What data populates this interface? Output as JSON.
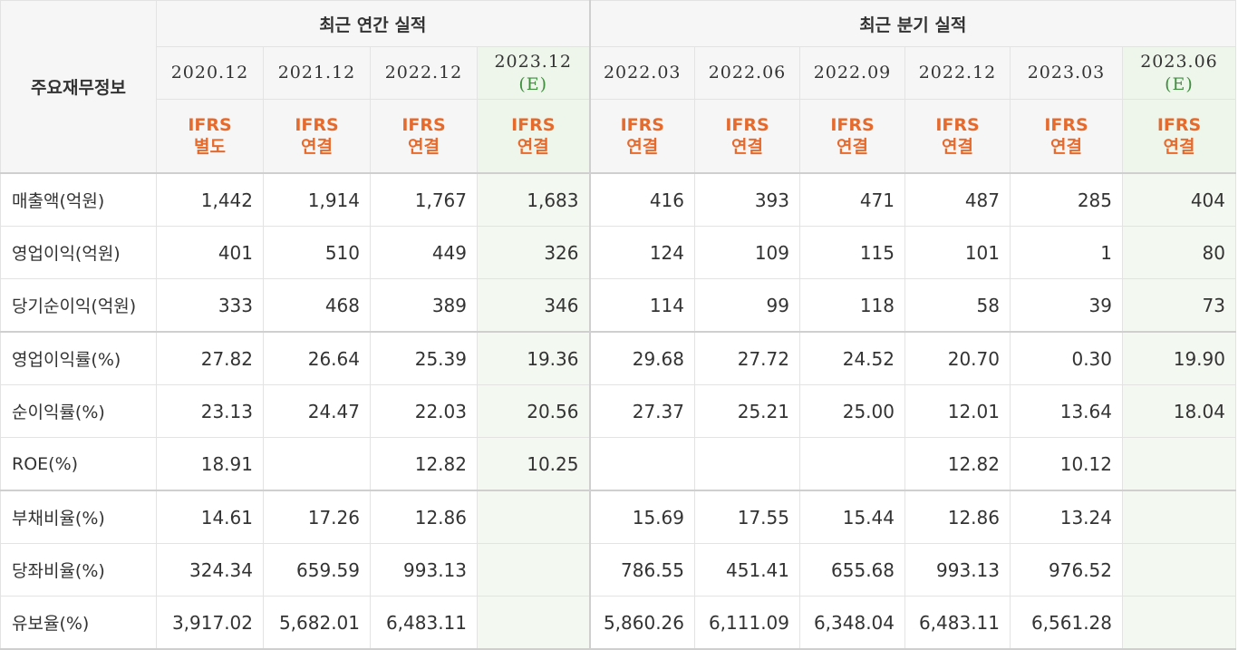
{
  "header": {
    "row_label": "주요재무정보",
    "annual_group": "최근 연간 실적",
    "quarter_group": "최근 분기 실적"
  },
  "columns": [
    {
      "period": "2020.12",
      "estimate": "",
      "std1": "IFRS",
      "std2": "별도"
    },
    {
      "period": "2021.12",
      "estimate": "",
      "std1": "IFRS",
      "std2": "연결"
    },
    {
      "period": "2022.12",
      "estimate": "",
      "std1": "IFRS",
      "std2": "연결"
    },
    {
      "period": "2023.12",
      "estimate": "(E)",
      "std1": "IFRS",
      "std2": "연결"
    },
    {
      "period": "2022.03",
      "estimate": "",
      "std1": "IFRS",
      "std2": "연결"
    },
    {
      "period": "2022.06",
      "estimate": "",
      "std1": "IFRS",
      "std2": "연결"
    },
    {
      "period": "2022.09",
      "estimate": "",
      "std1": "IFRS",
      "std2": "연결"
    },
    {
      "period": "2022.12",
      "estimate": "",
      "std1": "IFRS",
      "std2": "연결"
    },
    {
      "period": "2023.03",
      "estimate": "",
      "std1": "IFRS",
      "std2": "연결"
    },
    {
      "period": "2023.06",
      "estimate": "(E)",
      "std1": "IFRS",
      "std2": "연결"
    }
  ],
  "rows": [
    {
      "label": "매출액(억원)",
      "values": [
        "1,442",
        "1,914",
        "1,767",
        "1,683",
        "416",
        "393",
        "471",
        "487",
        "285",
        "404"
      ]
    },
    {
      "label": "영업이익(억원)",
      "values": [
        "401",
        "510",
        "449",
        "326",
        "124",
        "109",
        "115",
        "101",
        "1",
        "80"
      ]
    },
    {
      "label": "당기순이익(억원)",
      "values": [
        "333",
        "468",
        "389",
        "346",
        "114",
        "99",
        "118",
        "58",
        "39",
        "73"
      ]
    },
    {
      "label": "영업이익률(%)",
      "values": [
        "27.82",
        "26.64",
        "25.39",
        "19.36",
        "29.68",
        "27.72",
        "24.52",
        "20.70",
        "0.30",
        "19.90"
      ]
    },
    {
      "label": "순이익률(%)",
      "values": [
        "23.13",
        "24.47",
        "22.03",
        "20.56",
        "27.37",
        "25.21",
        "25.00",
        "12.01",
        "13.64",
        "18.04"
      ]
    },
    {
      "label": "ROE(%)",
      "values": [
        "18.91",
        "",
        "12.82",
        "10.25",
        "",
        "",
        "",
        "12.82",
        "10.12",
        ""
      ]
    },
    {
      "label": "부채비율(%)",
      "values": [
        "14.61",
        "17.26",
        "12.86",
        "",
        "15.69",
        "17.55",
        "15.44",
        "12.86",
        "13.24",
        ""
      ]
    },
    {
      "label": "당좌비율(%)",
      "values": [
        "324.34",
        "659.59",
        "993.13",
        "",
        "786.55",
        "451.41",
        "655.68",
        "993.13",
        "976.52",
        ""
      ]
    },
    {
      "label": "유보율(%)",
      "values": [
        "3,917.02",
        "5,682.01",
        "6,483.11",
        "",
        "5,860.26",
        "6,111.09",
        "6,348.04",
        "6,483.11",
        "6,561.28",
        ""
      ]
    }
  ]
}
